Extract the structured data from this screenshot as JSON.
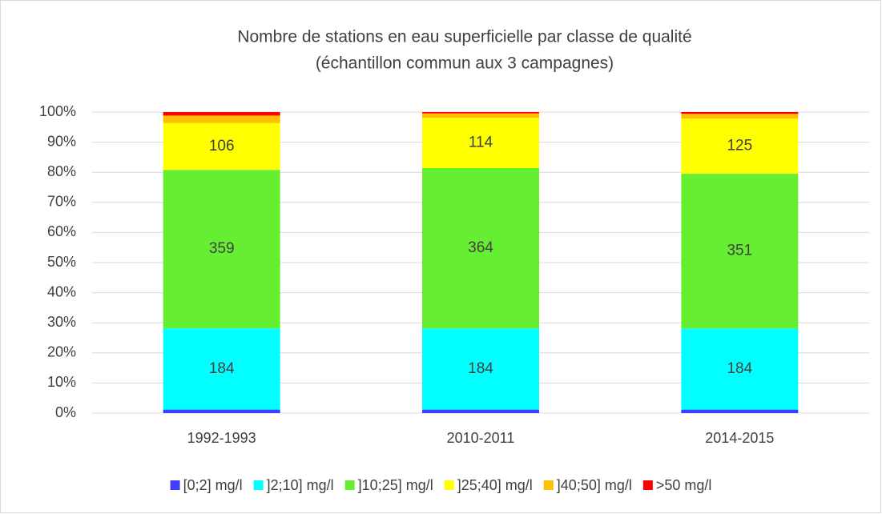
{
  "chart_data": {
    "type": "bar",
    "stacking": "percent",
    "title": "Nombre de stations en eau superficielle par classe de qualité",
    "subtitle": "(échantillon commun aux 3 campagnes)",
    "categories": [
      "1992-1993",
      "2010-2011",
      "2014-2015"
    ],
    "series": [
      {
        "name": "[0;2] mg/l",
        "color": "#3f3fff",
        "values": [
          8,
          8,
          8
        ],
        "show_labels": false
      },
      {
        "name": "]2;10] mg/l",
        "color": "#00ffff",
        "values": [
          184,
          184,
          184
        ],
        "show_labels": true
      },
      {
        "name": "]10;25] mg/l",
        "color": "#66ee33",
        "values": [
          359,
          364,
          351
        ],
        "show_labels": true
      },
      {
        "name": "]25;40] mg/l",
        "color": "#ffff00",
        "values": [
          106,
          114,
          125
        ],
        "show_labels": true
      },
      {
        "name": "]40;50] mg/l",
        "color": "#ffc000",
        "values": [
          17,
          10,
          11
        ],
        "show_labels": false
      },
      {
        "name": ">50 mg/l",
        "color": "#ff0000",
        "values": [
          8,
          3,
          4
        ],
        "show_labels": false
      }
    ],
    "ylim": [
      0,
      100
    ],
    "yticks": [
      {
        "value": 0,
        "label": "0%"
      },
      {
        "value": 10,
        "label": "10%"
      },
      {
        "value": 20,
        "label": "20%"
      },
      {
        "value": 30,
        "label": "30%"
      },
      {
        "value": 40,
        "label": "40%"
      },
      {
        "value": 50,
        "label": "50%"
      },
      {
        "value": 60,
        "label": "60%"
      },
      {
        "value": 70,
        "label": "70%"
      },
      {
        "value": 80,
        "label": "80%"
      },
      {
        "value": 90,
        "label": "90%"
      },
      {
        "value": 100,
        "label": "100%"
      }
    ],
    "grid": true,
    "legend": "bottom"
  }
}
